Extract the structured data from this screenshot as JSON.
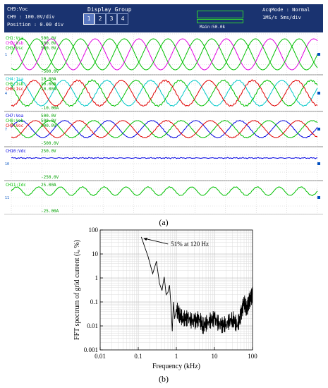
{
  "scope_header": {
    "channel_title": "CH9:Voc",
    "scale_line": "CH9  : 100.0V/div",
    "position_line": "Position : 0.00 div",
    "display_group_label": "Display Group",
    "group_buttons": [
      "1",
      "2",
      "3",
      "4"
    ],
    "active_group": "1",
    "main_label": "Main:50.0k",
    "acq_line": "AcqMode : Normal",
    "rate_line": "1MS/s     5ms/div"
  },
  "scope_panels": [
    {
      "labels": [
        {
          "text": "CH1:Vsa",
          "color": "#00c000"
        },
        {
          "text": "CH2:Vsb",
          "color": "#e000e0"
        },
        {
          "text": "CH3:Vsc",
          "color": "#00c000"
        }
      ],
      "scale_top": "500.0V",
      "scale_bottom": "-500.0V",
      "scale_repeats": [
        "500.0V",
        "500.0V"
      ],
      "marker": "1"
    },
    {
      "labels": [
        {
          "text": "CH4:Isa",
          "color": "#00c8c8"
        },
        {
          "text": "CH5:Isb",
          "color": "#00c000"
        },
        {
          "text": "CH6:Isc",
          "color": "#e00000"
        }
      ],
      "scale_top": "10.00A",
      "scale_bottom": "-10.00A",
      "scale_repeats": [
        "10.00A",
        "10.00A"
      ],
      "marker": "4"
    },
    {
      "labels": [
        {
          "text": "CH7:Voa",
          "color": "#0000e0"
        },
        {
          "text": "CH8:Vob",
          "color": "#00c000"
        },
        {
          "text": "CH9:Voc",
          "color": "#e00000"
        }
      ],
      "scale_top": "500.0V",
      "scale_bottom": "-500.0V",
      "scale_repeats": [
        "500.0V",
        "500.0V"
      ],
      "marker": "7"
    },
    {
      "labels": [
        {
          "text": "CH10:Vdc",
          "color": "#0000e0"
        }
      ],
      "scale_top": "250.0V",
      "scale_bottom": "-250.0V",
      "scale_repeats": [],
      "marker": "10"
    },
    {
      "labels": [
        {
          "text": "CH11:Idc",
          "color": "#00c000"
        }
      ],
      "scale_top": "25.00A",
      "scale_bottom": "-25.00A",
      "scale_repeats": [],
      "marker": "11"
    }
  ],
  "caption_a": "(a)",
  "caption_b": "(b)",
  "chart_data": {
    "type": "line",
    "title": "",
    "xlabel": "Frequency (kHz)",
    "ylabel": "FFT spectrum of grid current (iₐ %)",
    "x_scale": "log",
    "y_scale": "log",
    "xlim": [
      0.01,
      100
    ],
    "ylim": [
      0.001,
      100
    ],
    "x_ticks": [
      "0.01",
      "0.1",
      "1",
      "10",
      "100"
    ],
    "y_ticks": [
      "0.001",
      "0.01",
      "0.1",
      "1",
      "10",
      "100"
    ],
    "grid": true,
    "annotation": "51% at 120 Hz",
    "series": [
      {
        "color": "#000000",
        "x": [
          0.12,
          0.18,
          0.24,
          0.3,
          0.36,
          0.42,
          0.48,
          0.54,
          0.6,
          0.66,
          0.72,
          0.78,
          0.84,
          0.9,
          1.0,
          1.2,
          1.5,
          2,
          3,
          4,
          5,
          7,
          10,
          15,
          20,
          30,
          40,
          50,
          60,
          70,
          80,
          90,
          100
        ],
        "y": [
          51,
          8,
          1.5,
          5,
          0.6,
          0.3,
          1.1,
          0.2,
          0.25,
          0.5,
          0.08,
          0.006,
          0.1,
          0.02,
          0.05,
          0.03,
          0.02,
          0.02,
          0.015,
          0.02,
          0.01,
          0.015,
          0.02,
          0.01,
          0.012,
          0.02,
          0.01,
          0.03,
          0.1,
          0.05,
          0.1,
          0.15,
          0.2
        ]
      }
    ]
  }
}
